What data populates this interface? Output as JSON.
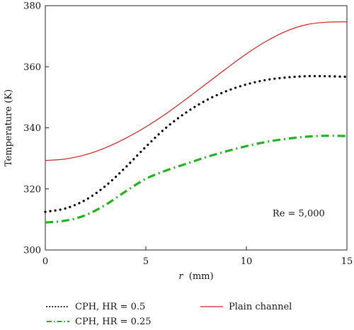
{
  "chart_data": {
    "type": "line",
    "xlabel_var": "r",
    "xlabel_unit": "(mm)",
    "ylabel": "Temperature (K)",
    "xlim": [
      0,
      15
    ],
    "ylim": [
      300,
      380
    ],
    "xticks": [
      0,
      5,
      10,
      15
    ],
    "yticks": [
      300,
      320,
      340,
      360,
      380
    ],
    "grid": false,
    "legend_position": "bottom",
    "annotation": "Re = 5,000",
    "series": [
      {
        "name": "CPH, HR = 0.5",
        "color": "#000000",
        "style": "dotted",
        "x": [
          0,
          1,
          2,
          3,
          4,
          5,
          6,
          7,
          8,
          9,
          10,
          11,
          12,
          13,
          14,
          15
        ],
        "y": [
          312.5,
          313.6,
          316.4,
          321.0,
          327.1,
          333.8,
          340.0,
          345.0,
          349.0,
          352.0,
          354.2,
          355.7,
          356.5,
          356.9,
          356.9,
          356.7
        ]
      },
      {
        "name": "CPH, HR = 0.25",
        "color": "#1fb31f",
        "style": "dashdot",
        "x": [
          0,
          1,
          2,
          3,
          4,
          5,
          6,
          7,
          8,
          9,
          10,
          11,
          12,
          13,
          14,
          15
        ],
        "y": [
          309.0,
          309.6,
          311.4,
          314.8,
          319.2,
          323.3,
          326.0,
          328.2,
          330.4,
          332.3,
          334.0,
          335.4,
          336.4,
          337.1,
          337.4,
          337.3
        ]
      },
      {
        "name": "Plain channel",
        "color": "#d42020",
        "style": "solid",
        "x": [
          0,
          1,
          2,
          3,
          4,
          5,
          6,
          7,
          8,
          9,
          10,
          11,
          12,
          13,
          14,
          15
        ],
        "y": [
          329.3,
          329.8,
          331.2,
          333.5,
          336.6,
          340.3,
          344.6,
          349.4,
          354.4,
          359.4,
          364.2,
          368.4,
          371.7,
          373.8,
          374.6,
          374.7
        ]
      }
    ]
  }
}
